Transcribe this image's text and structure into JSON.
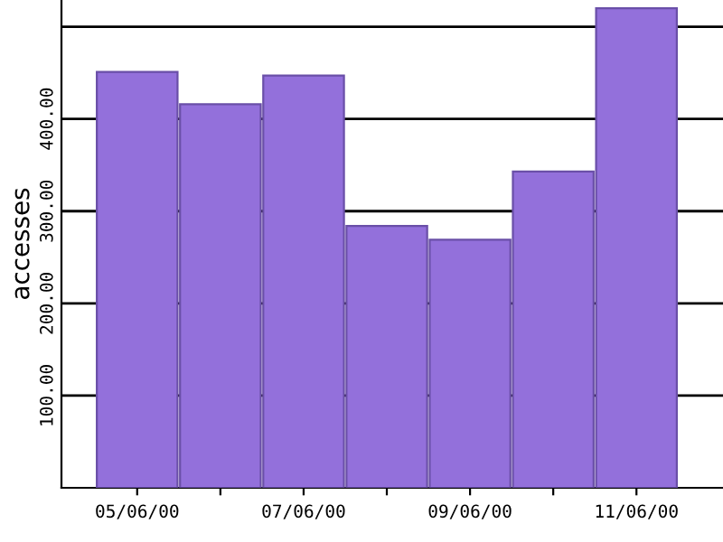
{
  "chart_data": {
    "type": "bar",
    "ylabel": "accesses",
    "categories": [
      "05/06/00",
      null,
      "07/06/00",
      null,
      "09/06/00",
      null,
      "11/06/00"
    ],
    "values": [
      451,
      416,
      447,
      284,
      269,
      343,
      520
    ],
    "color": "#9370db",
    "ylim": [
      0,
      529
    ],
    "yticks": [
      {
        "value": 100,
        "label": "100.00"
      },
      {
        "value": 200,
        "label": "200.00"
      },
      {
        "value": 300,
        "label": "300.00"
      },
      {
        "value": 400,
        "label": "400.00"
      },
      {
        "value": 500,
        "label": null
      }
    ],
    "grid": "y"
  }
}
